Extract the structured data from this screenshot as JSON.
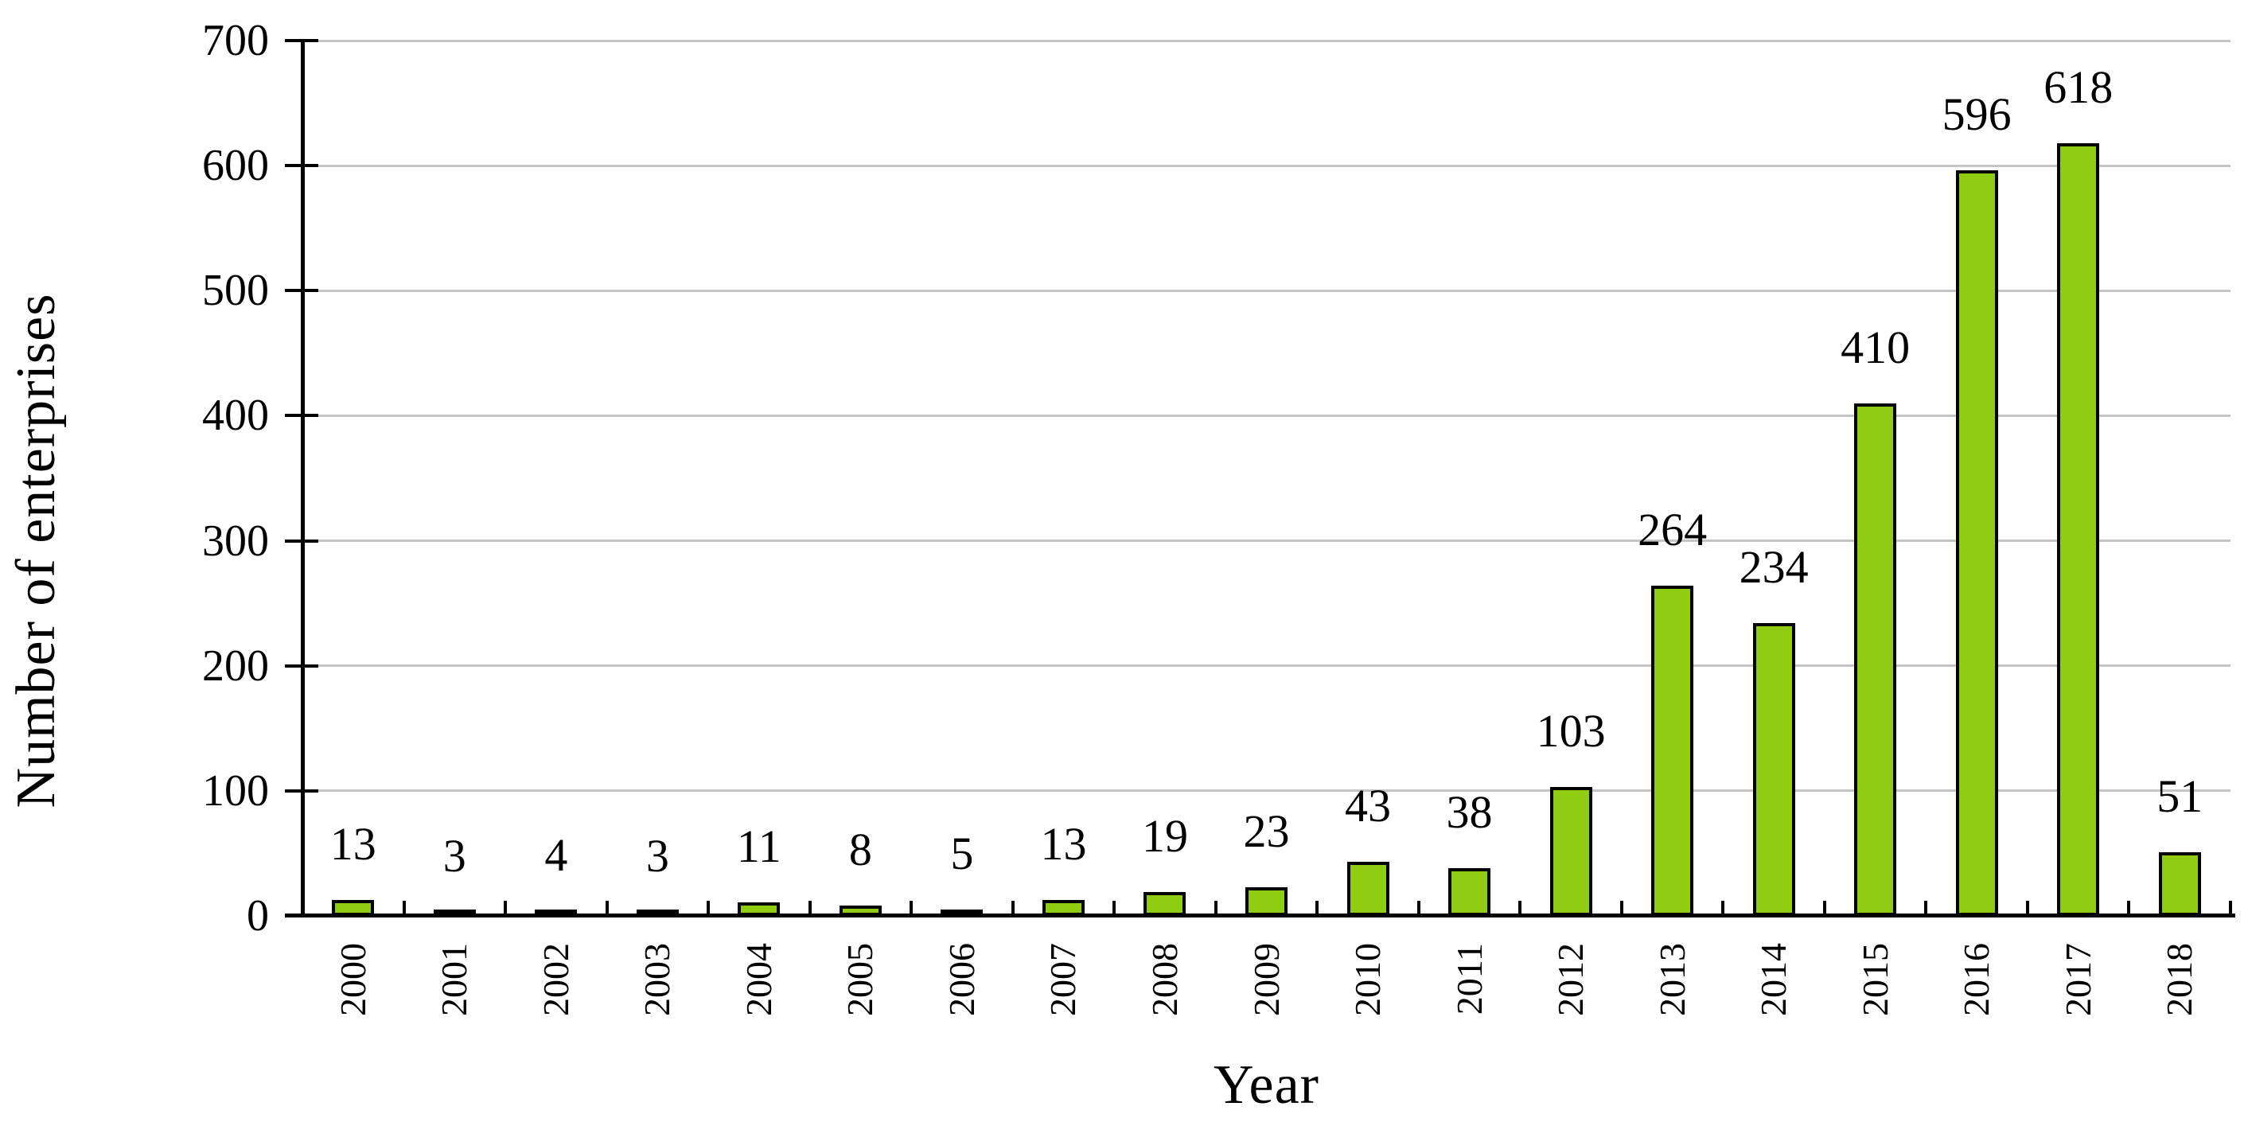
{
  "chart_data": {
    "type": "bar",
    "xlabel": "Year",
    "ylabel": "Number of enterprises",
    "categories": [
      "2000",
      "2001",
      "2002",
      "2003",
      "2004",
      "2005",
      "2006",
      "2007",
      "2008",
      "2009",
      "2010",
      "2011",
      "2012",
      "2013",
      "2014",
      "2015",
      "2016",
      "2017",
      "2018"
    ],
    "values": [
      13,
      3,
      4,
      3,
      11,
      8,
      5,
      13,
      19,
      23,
      43,
      38,
      103,
      264,
      234,
      410,
      596,
      618,
      51
    ],
    "data_labels": [
      "13",
      "3",
      "4",
      "3",
      "11",
      "8",
      "5",
      "13",
      "19",
      "23",
      "43",
      "38",
      "103",
      "264",
      "234",
      "410",
      "596",
      "618",
      "51"
    ],
    "yticks": [
      0,
      100,
      200,
      300,
      400,
      500,
      600,
      700
    ],
    "ylim": [
      0,
      700
    ],
    "grid": "horizontal",
    "legend": "none",
    "colors": {
      "bar_fill": "#90cc12",
      "bar_border": "#000000",
      "gridline": "#c5c5c5",
      "axis": "#000000",
      "text": "#000000",
      "background": "#ffffff"
    }
  }
}
